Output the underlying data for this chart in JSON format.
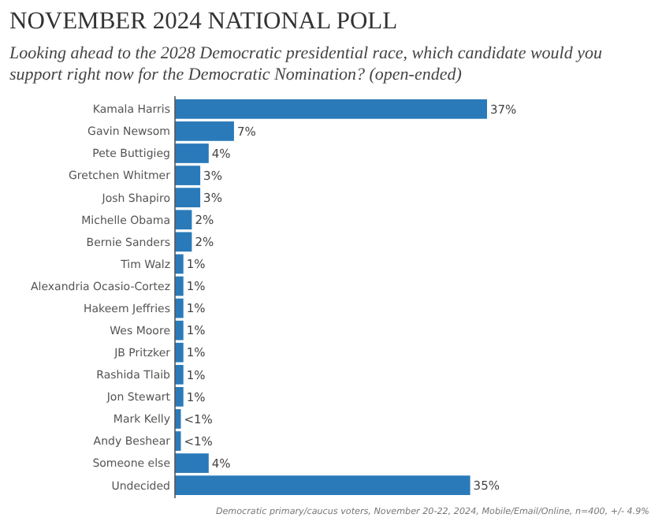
{
  "chart_data": {
    "type": "bar",
    "orientation": "horizontal",
    "title": "NOVEMBER 2024 NATIONAL POLL",
    "subtitle": "Looking ahead to the 2028 Democratic presidential race, which candidate would you support right now for the Democratic Nomination? (open-ended)",
    "categories": [
      "Kamala Harris",
      "Gavin Newsom",
      "Pete Buttigieg",
      "Gretchen Whitmer",
      "Josh Shapiro",
      "Michelle Obama",
      "Bernie Sanders",
      "Tim Walz",
      "Alexandria Ocasio-Cortez",
      "Hakeem Jeffries",
      "Wes Moore",
      "JB Pritzker",
      "Rashida Tlaib",
      "Jon Stewart",
      "Mark Kelly",
      "Andy Beshear",
      "Someone else",
      "Undecided"
    ],
    "values": [
      37,
      7,
      4,
      3,
      3,
      2,
      2,
      1,
      1,
      1,
      1,
      1,
      1,
      1,
      0.7,
      0.7,
      4,
      35
    ],
    "value_labels": [
      "37%",
      "7%",
      "4%",
      "3%",
      "3%",
      "2%",
      "2%",
      "1%",
      "1%",
      "1%",
      "1%",
      "1%",
      "1%",
      "1%",
      "<1%",
      "<1%",
      "4%",
      "35%"
    ],
    "color": "#2a7ab9",
    "annotations": [
      "Democratic primary/caucus voters, November 20-22, 2024, Mobile/Email/Online, n=400, +/- 4.9%"
    ]
  }
}
